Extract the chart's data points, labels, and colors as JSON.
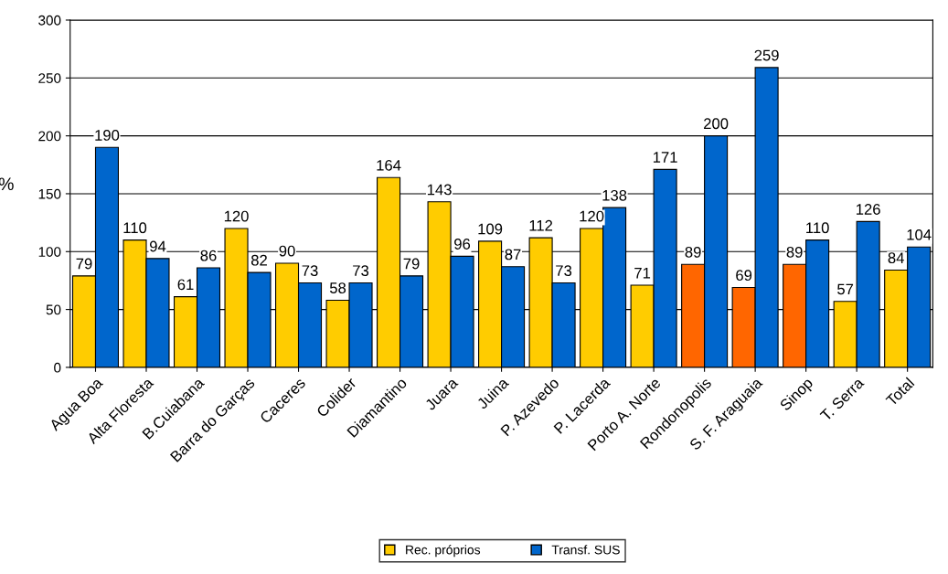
{
  "chart_data": {
    "type": "bar",
    "ylabel": "%",
    "categories": [
      "Agua Boa",
      "Alta Floresta",
      "B.Cuiabana",
      "Barra do Garças",
      "Caceres",
      "Colider",
      "Diamantino",
      "Juara",
      "Juina",
      "P. Azevedo",
      "P. Lacerda",
      "Porto A. Norte",
      "Rondonopolis",
      "S. F. Araguaia",
      "Sinop",
      "T. Serra",
      "Total"
    ],
    "series": [
      {
        "name": "Rec. próprios",
        "color": "#ffcc00",
        "colors": [
          "#ffcc00",
          "#ffcc00",
          "#ffcc00",
          "#ffcc00",
          "#ffcc00",
          "#ffcc00",
          "#ffcc00",
          "#ffcc00",
          "#ffcc00",
          "#ffcc00",
          "#ffcc00",
          "#ffcc00",
          "#ff6600",
          "#ff6600",
          "#ff6600",
          "#ffcc00",
          "#ffcc00"
        ],
        "values": [
          79,
          110,
          61,
          120,
          90,
          58,
          164,
          143,
          109,
          112,
          120,
          71,
          89,
          69,
          89,
          57,
          84
        ]
      },
      {
        "name": "Transf. SUS",
        "color": "#0066cc",
        "values": [
          190,
          94,
          86,
          82,
          73,
          73,
          79,
          96,
          87,
          73,
          138,
          171,
          200,
          259,
          110,
          126,
          104
        ]
      }
    ],
    "ylim": [
      0,
      300
    ],
    "yticks": [
      0,
      50,
      100,
      150,
      200,
      250,
      300
    ],
    "grid": "y",
    "data_labels": true,
    "legend": "bottom"
  }
}
